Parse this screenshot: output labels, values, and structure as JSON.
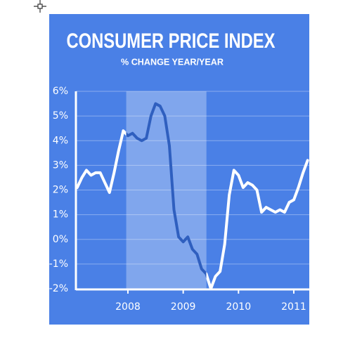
{
  "chart_data": {
    "type": "line",
    "title": "CONSUMER PRICE INDEX",
    "subtitle": "% CHANGE YEAR/YEAR",
    "x": [
      2007.083,
      2007.167,
      2007.25,
      2007.333,
      2007.417,
      2007.5,
      2007.583,
      2007.667,
      2007.75,
      2007.833,
      2007.917,
      2008.0,
      2008.083,
      2008.167,
      2008.25,
      2008.333,
      2008.417,
      2008.5,
      2008.583,
      2008.667,
      2008.75,
      2008.833,
      2008.917,
      2009.0,
      2009.083,
      2009.167,
      2009.25,
      2009.333,
      2009.417,
      2009.5,
      2009.583,
      2009.667,
      2009.75,
      2009.833,
      2009.917,
      2010.0,
      2010.083,
      2010.167,
      2010.25,
      2010.333,
      2010.417,
      2010.5,
      2010.583,
      2010.667,
      2010.75,
      2010.833,
      2010.917,
      2011.0,
      2011.083,
      2011.167,
      2011.25
    ],
    "series": [
      {
        "color": "#ffffff",
        "highlight_color": "#2f5fbf",
        "values": [
          2.1,
          2.5,
          2.8,
          2.6,
          2.7,
          2.7,
          2.3,
          1.9,
          2.7,
          3.6,
          4.4,
          4.2,
          4.3,
          4.1,
          4.0,
          4.1,
          5.0,
          5.5,
          5.4,
          5.0,
          3.8,
          1.2,
          0.1,
          -0.1,
          0.1,
          -0.4,
          -0.6,
          -1.2,
          -1.4,
          -2.0,
          -1.5,
          -1.3,
          -0.2,
          1.8,
          2.8,
          2.6,
          2.1,
          2.3,
          2.2,
          2.0,
          1.1,
          1.3,
          1.2,
          1.1,
          1.2,
          1.1,
          1.5,
          1.6,
          2.1,
          2.7,
          3.2
        ]
      }
    ],
    "shaded_range": [
      2007.97,
      2009.42
    ],
    "xlim": [
      2007.06,
      2011.28
    ],
    "xticks": [
      2008,
      2009,
      2010,
      2011
    ],
    "ylim": [
      -2,
      6
    ],
    "yticks": [
      {
        "value": -2,
        "label": "-2%"
      },
      {
        "value": -1,
        "label": "-1%"
      },
      {
        "value": 0,
        "label": "0%"
      },
      {
        "value": 1,
        "label": "1%"
      },
      {
        "value": 2,
        "label": "2%"
      },
      {
        "value": 3,
        "label": "3%"
      },
      {
        "value": 4,
        "label": "4%"
      },
      {
        "value": 5,
        "label": "5%"
      },
      {
        "value": 6,
        "label": "6%"
      }
    ],
    "grid": true,
    "background": "#4a80e6"
  }
}
